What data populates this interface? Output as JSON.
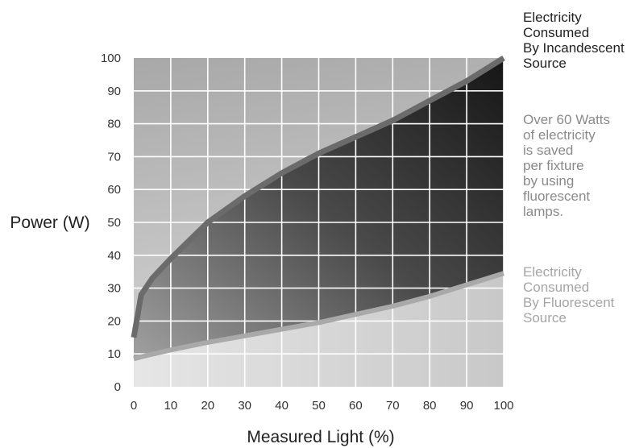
{
  "chart_data": {
    "type": "area",
    "xlabel": "Measured Light (%)",
    "ylabel": "Power (W)",
    "xlim": [
      0,
      100
    ],
    "ylim": [
      0,
      100
    ],
    "x_ticks": [
      0,
      10,
      20,
      30,
      40,
      50,
      60,
      70,
      80,
      90,
      100
    ],
    "y_ticks": [
      0,
      10,
      20,
      30,
      40,
      50,
      60,
      70,
      80,
      90,
      100
    ],
    "grid": true,
    "x": [
      0,
      2,
      5,
      10,
      20,
      30,
      40,
      50,
      60,
      70,
      80,
      90,
      100
    ],
    "series": [
      {
        "name": "Electricity Consumed By Incandescent Source",
        "values": [
          15,
          28,
          33,
          39,
          50,
          58,
          65,
          71,
          76,
          81,
          87,
          93,
          100
        ],
        "color": "#6b6b6b"
      },
      {
        "name": "Electricity Consumed By Fluorescent Source",
        "values": [
          8.5,
          9.1,
          9.9,
          11.2,
          13.5,
          15.5,
          17.5,
          19.5,
          22,
          24.5,
          27.5,
          31,
          34.5
        ],
        "color": "#a9a9a9"
      }
    ],
    "annotations": [
      {
        "text": "Electricity\nConsumed\nBy Incandescent\nSource",
        "color": "#222222"
      },
      {
        "text": "Over 60 Watts\nof electricity\nis saved\nper fixture\nby using\nfluorescent\nlamps.",
        "color": "#8a8a8a"
      },
      {
        "text": "Electricity\nConsumed\nBy Fluorescent\nSource",
        "color": "#a5a5a5"
      }
    ]
  }
}
